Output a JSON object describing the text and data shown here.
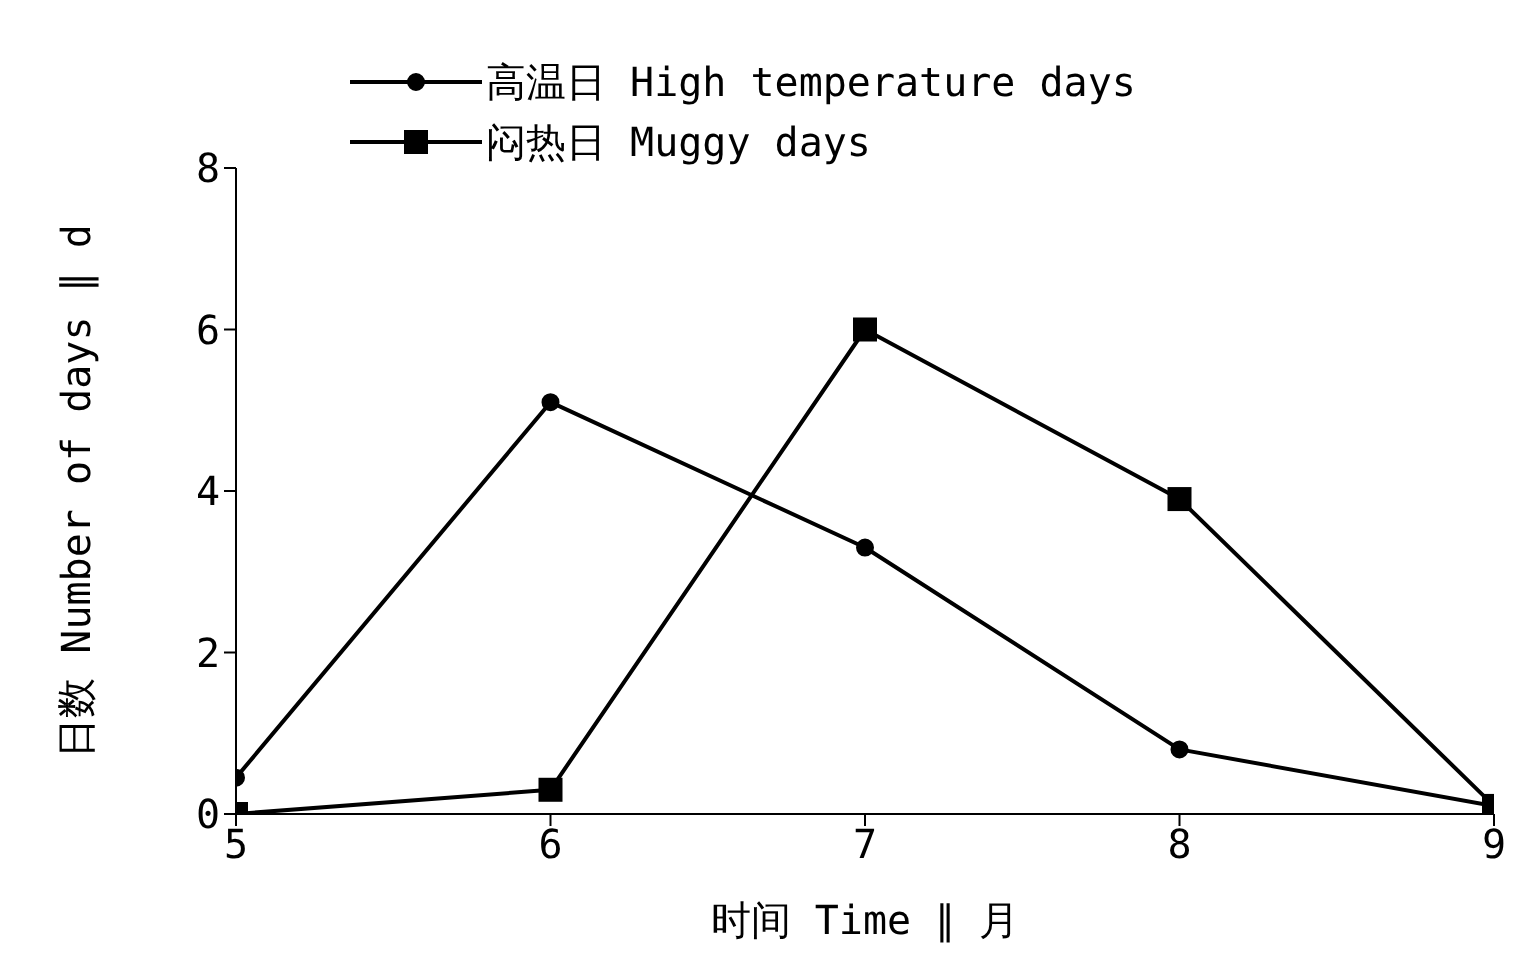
{
  "chart_data": {
    "type": "line",
    "xlabel": "时间 Time ∥ 月",
    "ylabel": "日数 Number of days ∥ d",
    "x": [
      5,
      6,
      7,
      8,
      9
    ],
    "series": [
      {
        "name": "高温日 High temperature days",
        "color": "#000000",
        "marker": "circle",
        "values": [
          0.45,
          5.1,
          3.3,
          0.8,
          0.1
        ]
      },
      {
        "name": "闷热日 Muggy days",
        "color": "#000000",
        "marker": "square",
        "values": [
          0,
          0.3,
          6,
          3.9,
          0.1
        ]
      }
    ],
    "xlim": [
      5,
      9
    ],
    "xticks": [
      5,
      6,
      7,
      8,
      9
    ],
    "ylim": [
      0,
      8
    ],
    "yticks": [
      0,
      2,
      4,
      6,
      8
    ],
    "grid": false,
    "legend": "top left",
    "line_style": "solid"
  }
}
